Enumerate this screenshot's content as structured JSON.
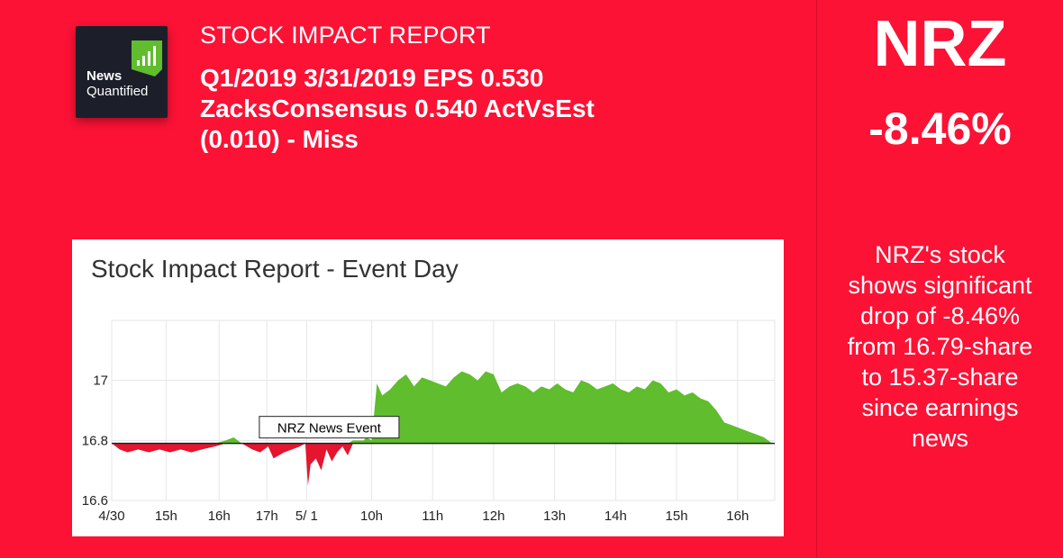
{
  "brand": {
    "line1": "News",
    "line2": "Quantified"
  },
  "report_label": "STOCK IMPACT REPORT",
  "headline": {
    "line1": "Q1/2019 3/31/2019 EPS 0.530",
    "line2": "ZacksConsensus 0.540 ActVsEst",
    "line3": "(0.010) - Miss"
  },
  "ticker": "NRZ",
  "change": "-8.46%",
  "summary": [
    "NRZ's stock",
    "shows significant",
    "drop of -8.46%",
    "from 16.79-share",
    "to 15.37-share",
    "since earnings",
    "news"
  ],
  "colors": {
    "background": "#fb1235",
    "up": "#5fbd2e",
    "down": "#e5142f"
  },
  "chart_data": {
    "type": "area",
    "title": "Stock Impact Report - Event Day",
    "baseline": 16.79,
    "ylim": [
      16.6,
      17.2
    ],
    "y_ticks": [
      16.6,
      16.8,
      17
    ],
    "y_tick_labels": [
      "16.6",
      "16.8",
      "17"
    ],
    "x_range": [
      0,
      25
    ],
    "x_ticks": [
      {
        "x": 0,
        "label": "4/30"
      },
      {
        "x": 2.05,
        "label": "15h"
      },
      {
        "x": 4.05,
        "label": "16h"
      },
      {
        "x": 5.85,
        "label": "17h"
      },
      {
        "x": 7.35,
        "label": "5/ 1"
      },
      {
        "x": 9.8,
        "label": "10h"
      },
      {
        "x": 12.1,
        "label": "11h"
      },
      {
        "x": 14.4,
        "label": "12h"
      },
      {
        "x": 16.7,
        "label": "13h"
      },
      {
        "x": 19.0,
        "label": "14h"
      },
      {
        "x": 21.3,
        "label": "15h"
      },
      {
        "x": 23.6,
        "label": "16h"
      }
    ],
    "annotation": {
      "label": "NRZ News Event",
      "x": 8.2,
      "y": 16.79
    },
    "x": [
      0,
      0.3,
      0.6,
      1.0,
      1.4,
      1.8,
      2.2,
      2.6,
      3.0,
      3.4,
      3.9,
      4.3,
      4.6,
      4.9,
      5.3,
      5.6,
      5.9,
      6.1,
      6.5,
      6.8,
      7.1,
      7.3,
      7.4,
      7.5,
      7.7,
      7.9,
      8.1,
      8.3,
      8.5,
      8.7,
      8.9,
      9.1,
      9.3,
      9.5,
      9.6,
      9.8,
      10.0,
      10.2,
      10.5,
      10.8,
      11.1,
      11.4,
      11.7,
      12.0,
      12.3,
      12.6,
      12.9,
      13.2,
      13.5,
      13.8,
      14.1,
      14.4,
      14.7,
      15.0,
      15.3,
      15.6,
      15.9,
      16.2,
      16.5,
      16.8,
      17.1,
      17.4,
      17.7,
      18.0,
      18.3,
      18.6,
      18.9,
      19.2,
      19.5,
      19.8,
      20.1,
      20.4,
      20.7,
      21.0,
      21.3,
      21.6,
      21.9,
      22.2,
      22.5,
      22.8,
      23.1,
      23.4,
      23.7,
      24.0,
      24.3,
      24.6,
      24.9
    ],
    "y": [
      16.79,
      16.77,
      16.76,
      16.77,
      16.76,
      16.77,
      16.76,
      16.77,
      16.76,
      16.77,
      16.78,
      16.8,
      16.81,
      16.79,
      16.77,
      16.76,
      16.78,
      16.74,
      16.76,
      16.77,
      16.78,
      16.79,
      16.65,
      16.72,
      16.74,
      16.7,
      16.77,
      16.73,
      16.76,
      16.78,
      16.75,
      16.8,
      16.8,
      16.8,
      16.81,
      16.8,
      16.99,
      16.95,
      16.97,
      17.0,
      17.02,
      16.98,
      17.01,
      17.0,
      16.99,
      16.98,
      17.01,
      17.03,
      17.02,
      17.0,
      17.03,
      17.02,
      16.96,
      16.98,
      16.99,
      16.98,
      16.96,
      16.98,
      16.97,
      16.99,
      16.97,
      16.96,
      17.0,
      16.99,
      16.97,
      16.98,
      16.99,
      16.97,
      16.96,
      16.98,
      16.97,
      17.0,
      16.99,
      16.96,
      16.97,
      16.95,
      16.96,
      16.94,
      16.93,
      16.9,
      16.86,
      16.85,
      16.84,
      16.83,
      16.82,
      16.81,
      16.79
    ]
  }
}
